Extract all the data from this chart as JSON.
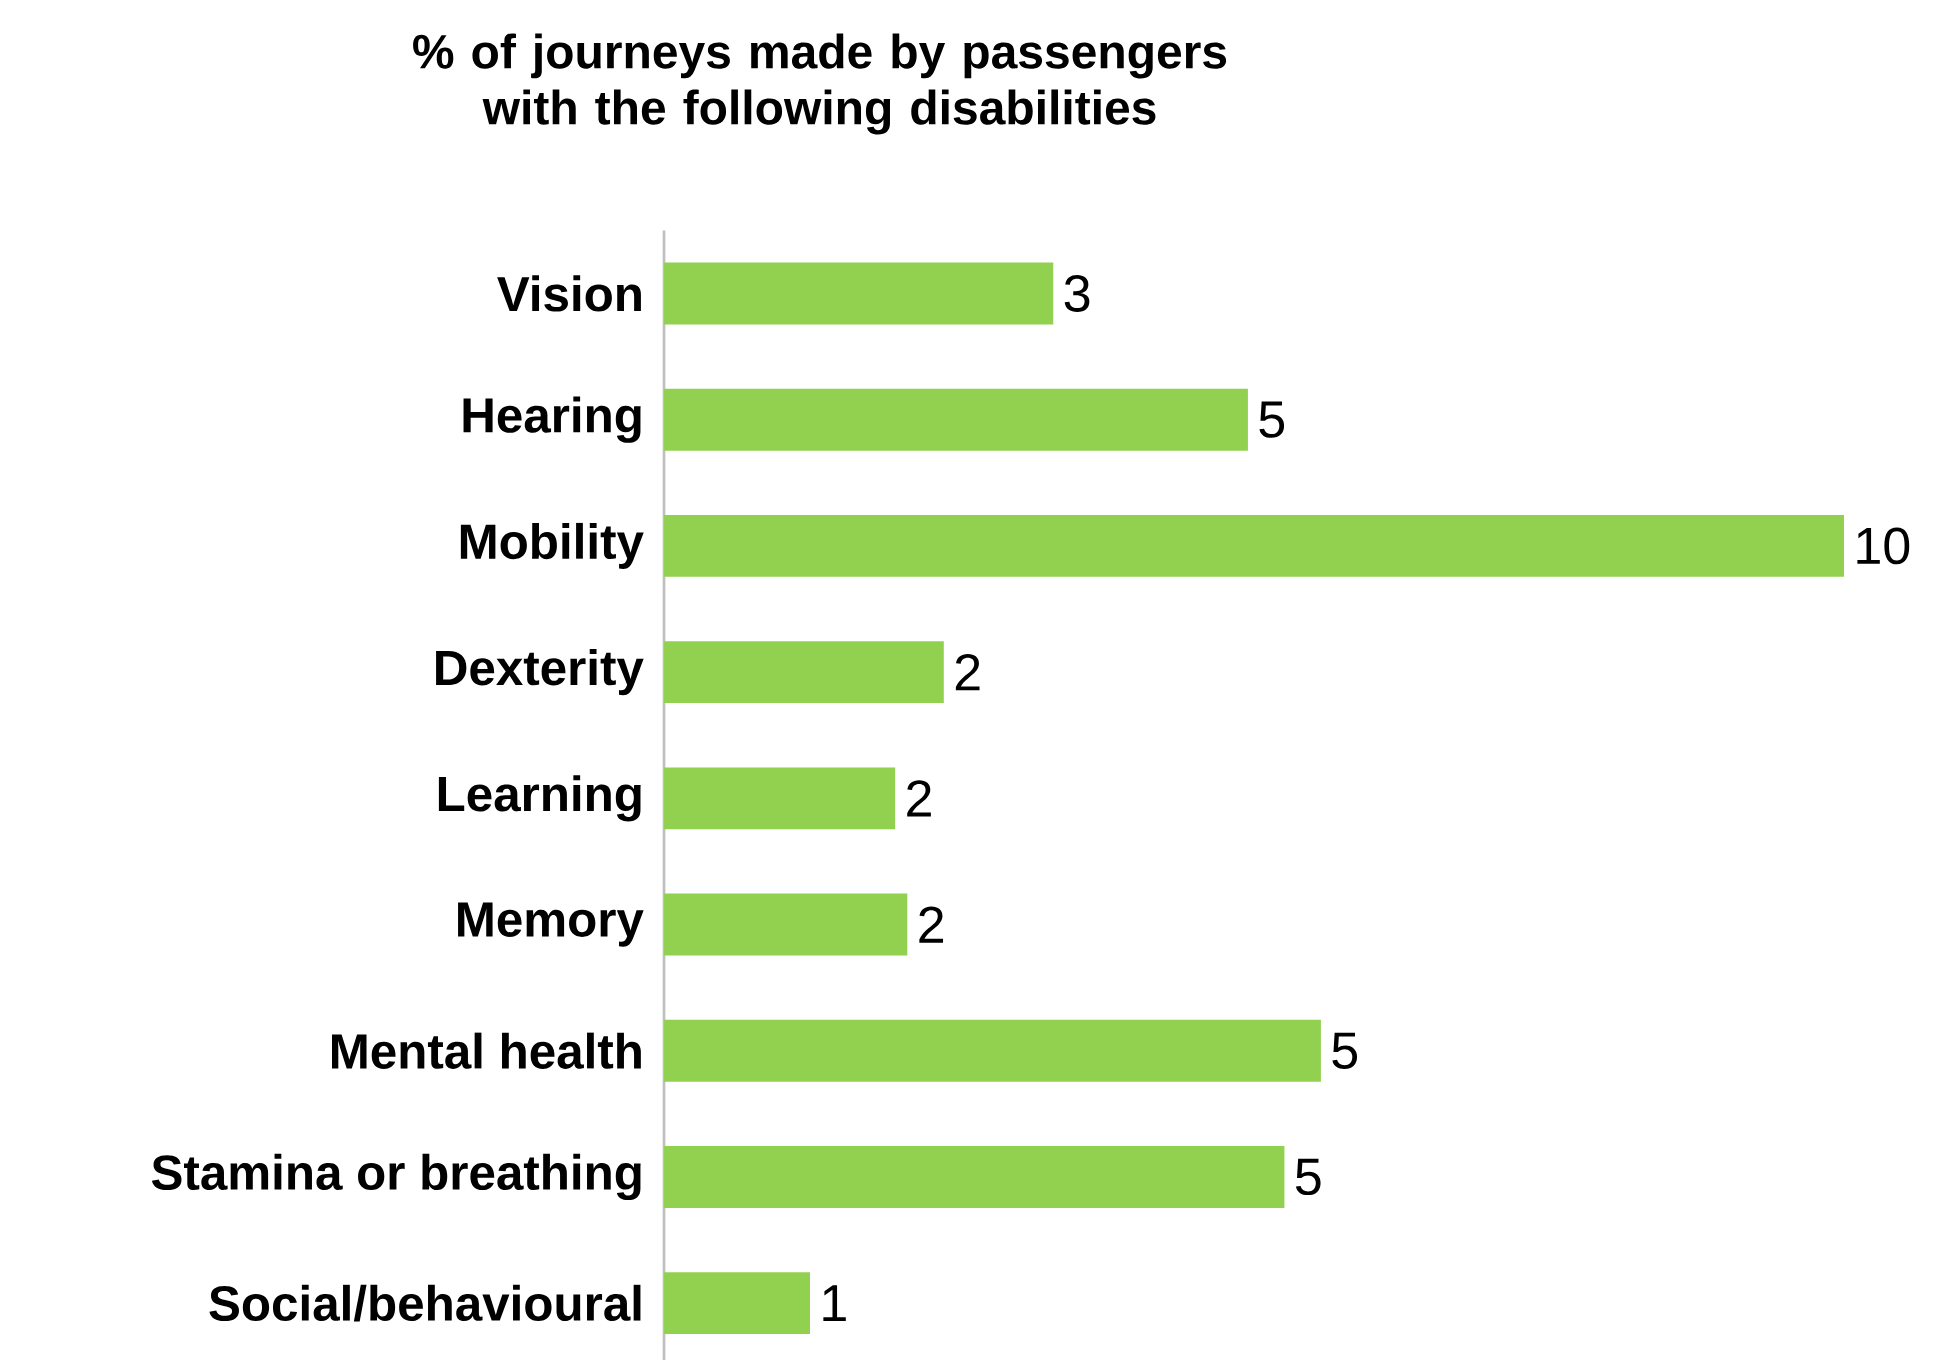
{
  "chart_data": {
    "type": "bar",
    "orientation": "horizontal",
    "title": "% of journeys made by passengers with the following disabilities",
    "categories": [
      "Vision",
      "Hearing",
      "Mobility",
      "Dexterity",
      "Learning",
      "Memory",
      "Mental health",
      "Stamina or breathing",
      "Social/behavioural"
    ],
    "values": [
      3.2,
      4.8,
      9.7,
      2.3,
      1.9,
      2.0,
      5.4,
      5.1,
      1.2
    ],
    "value_labels": [
      "3",
      "5",
      "10",
      "2",
      "2",
      "2",
      "5",
      "5",
      "1"
    ],
    "color": "#92d050"
  }
}
